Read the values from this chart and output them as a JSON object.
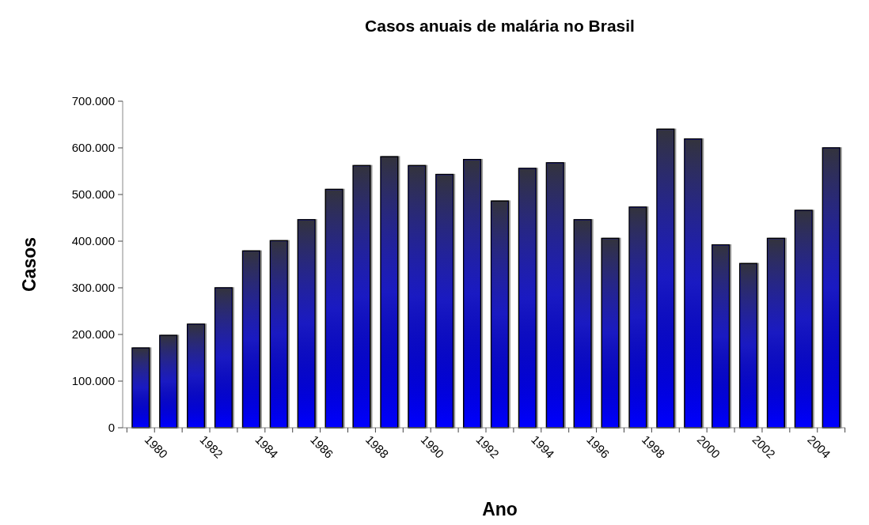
{
  "chart_data": {
    "type": "bar",
    "title": "Casos anuais de malária no Brasil",
    "xlabel": "Ano",
    "ylabel": "Casos",
    "categories": [
      "1980",
      null,
      "1982",
      null,
      "1984",
      null,
      "1986",
      null,
      "1988",
      null,
      "1990",
      null,
      "1992",
      null,
      "1994",
      null,
      "1996",
      null,
      "1998",
      null,
      "2000",
      null,
      "2002",
      null,
      "2004",
      null
    ],
    "values": [
      171000,
      198000,
      222000,
      300000,
      379000,
      401000,
      446000,
      511000,
      562000,
      581000,
      562000,
      543000,
      575000,
      486000,
      556000,
      568000,
      446000,
      406000,
      473000,
      640000,
      619000,
      392000,
      352000,
      406000,
      466000,
      600000
    ],
    "color": "#0000ff",
    "ylim": [
      0,
      700000
    ],
    "yticks": [
      0,
      {
        "value": 100000,
        "label": "100.000"
      },
      {
        "value": 200000,
        "label": "200.000"
      },
      {
        "value": 300000,
        "label": "300.000"
      },
      {
        "value": 400000,
        "label": "400.000"
      },
      {
        "value": 500000,
        "label": "500.000"
      },
      {
        "value": 600000,
        "label": "600.000"
      },
      {
        "value": 700000,
        "label": "700.000"
      }
    ],
    "grid": false
  }
}
